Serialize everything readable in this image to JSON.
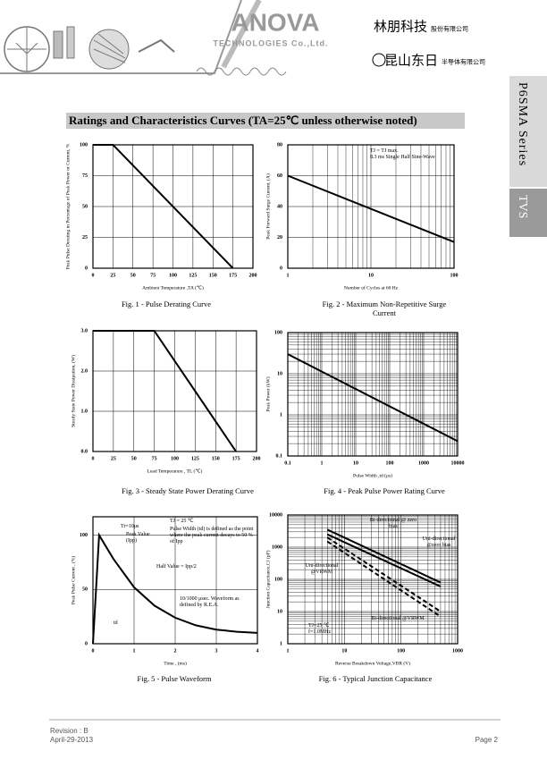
{
  "header": {
    "brand": "ANOVA",
    "brand_sub": "TECHNOLOGIES Co.,Ltd.",
    "company1": "林朋科技",
    "company1_sub": "股份有限公司",
    "company2": "昆山东日",
    "company2_sub": "半导体有限公司"
  },
  "side_tab": {
    "series": "P6SMA Series",
    "family": "TVS"
  },
  "section_title": "Ratings and Characteristics Curves (TA=25℃ unless otherwise noted)",
  "footer": {
    "revision": "Revision : B",
    "date": "April-29-2013",
    "page": "Page 2"
  },
  "chart_data": [
    {
      "type": "line",
      "title": "Fig. 1 - Pulse Derating Curve",
      "xlabel": "Ambient Temperature ,TA (℃)",
      "ylabel": "Peak Pulse Derating in Percentage of Peak Power or Current, %",
      "x": [
        0,
        25,
        175
      ],
      "values": [
        100,
        100,
        0
      ],
      "xlim": [
        0,
        200
      ],
      "xticks": [
        0,
        25,
        50,
        75,
        100,
        125,
        150,
        175,
        200
      ],
      "ylim": [
        0,
        100
      ],
      "yticks": [
        0,
        25,
        50,
        75,
        100
      ],
      "grid": true
    },
    {
      "type": "line",
      "title": "Fig. 2 - Maximum Non-Repetitive Surge Current",
      "xlabel": "Number of Cycles at 60 Hz",
      "ylabel": "Peak Forward Surge Current, (A)",
      "x": [
        1,
        100
      ],
      "values": [
        60,
        17
      ],
      "xlim": [
        1,
        100
      ],
      "xlog": true,
      "xticks": [
        1,
        10,
        100
      ],
      "ylim": [
        0,
        80
      ],
      "yticks": [
        0,
        20,
        40,
        60,
        80
      ],
      "grid": true,
      "annotations": [
        "TJ = TJ max.",
        "8.3 ms Single Half Sine-Wave"
      ]
    },
    {
      "type": "line",
      "title": "Fig. 3 - Steady State Power Derating Curve",
      "xlabel": "Lead Temperature , TL (℃)",
      "ylabel": "Steady State Power Dissipation, (W)",
      "x": [
        0,
        75,
        175
      ],
      "values": [
        3,
        3,
        0
      ],
      "xlim": [
        0,
        200
      ],
      "xticks": [
        0,
        25,
        50,
        75,
        100,
        125,
        150,
        175,
        200
      ],
      "ylim": [
        0,
        3
      ],
      "yticks": [
        {
          "value": 0,
          "label": "0.0"
        },
        {
          "value": 1,
          "label": "1.0"
        },
        {
          "value": 2,
          "label": "2.0"
        },
        {
          "value": 3,
          "label": "3.0"
        }
      ],
      "grid": true
    },
    {
      "type": "line",
      "title": "Fig. 4 - Peak Pulse Power Rating Curve",
      "xlabel": "Pulse Width ,td (μs)",
      "ylabel": "Peak Power (kW)",
      "x": [
        0.1,
        10000
      ],
      "values": [
        30,
        0.23
      ],
      "xlim": [
        0.1,
        10000
      ],
      "xlog": true,
      "xticks": [
        0.1,
        1,
        10,
        100,
        1000,
        10000
      ],
      "ylim": [
        0.1,
        100
      ],
      "ylog": true,
      "yticks": [
        0.1,
        1,
        10,
        100
      ],
      "grid": true
    },
    {
      "type": "line",
      "title": "Fig. 5 - Pulse Waveform",
      "xlabel": "Time , (ms)",
      "ylabel": "Peak Pulse Current , (%)",
      "x": [
        0,
        0.15,
        0.5,
        1,
        1.5,
        2,
        2.5,
        3,
        3.5,
        4
      ],
      "values": [
        0,
        100,
        78,
        52,
        35,
        24,
        17,
        13,
        11,
        10
      ],
      "xlim": [
        0,
        4
      ],
      "xticks": [
        0,
        1,
        2,
        3,
        4
      ],
      "ylim": [
        0,
        117
      ],
      "yticks": [
        0,
        50,
        100
      ],
      "grid": true,
      "annotations": [
        "Tr=10μs",
        "Peak Value (Ipp)",
        "TJ = 25 ℃",
        "Pulse Width (td) is defined as the point where the peak current decays to 50 % of Ipp",
        "Half Value = Ipp/2",
        "10/1000 μsec. Waveform as defined by R.E.A.",
        "td"
      ]
    },
    {
      "type": "line",
      "title": "Fig. 6 - Typical Junction Capacitance",
      "xlabel": "Reverse Breakdown Voltage,VBR (V)",
      "ylabel": "Junction Capacitance,CJ (pF)",
      "x": [
        5,
        500
      ],
      "xlim": [
        1,
        1000
      ],
      "xlog": true,
      "xticks": [
        1,
        10,
        100,
        1000
      ],
      "ylim": [
        1,
        10000
      ],
      "ylog": true,
      "yticks": [
        1,
        10,
        100,
        1000,
        10000
      ],
      "grid": true,
      "series": [
        {
          "name": "Bi-directional @ zero bias",
          "color": "#000000",
          "dash": false,
          "values": [
            3500,
            80
          ]
        },
        {
          "name": "Uni-directional @zero bias",
          "color": "#000000",
          "dash": false,
          "values": [
            2500,
            60
          ]
        },
        {
          "name": "Uni-directional @VRWM",
          "color": "#000000",
          "dash": true,
          "values": [
            2000,
            10
          ]
        },
        {
          "name": "Bi-directional @VRWM",
          "color": "#000000",
          "dash": true,
          "values": [
            1500,
            7
          ]
        }
      ],
      "annotations": [
        "TJ=25 ℃ f=1.0MHz"
      ]
    }
  ]
}
